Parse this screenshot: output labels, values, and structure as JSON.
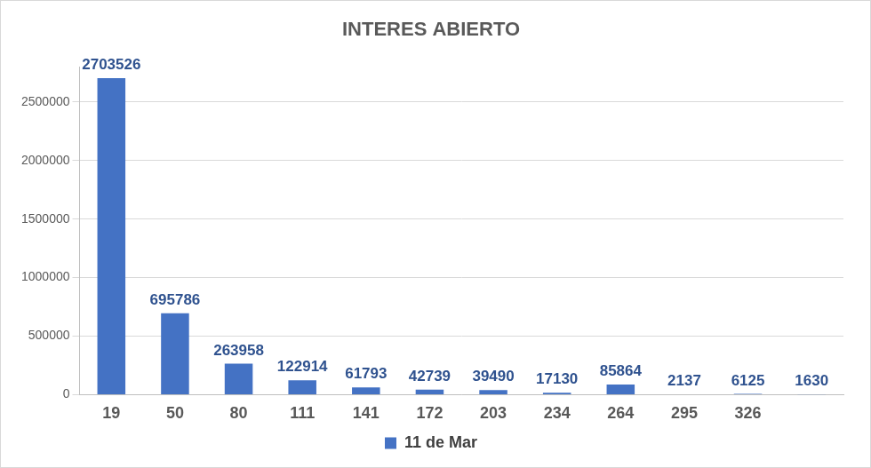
{
  "chart_data": {
    "type": "bar",
    "title": "INTERES ABIERTO",
    "categories": [
      "19",
      "50",
      "80",
      "111",
      "141",
      "172",
      "203",
      "234",
      "264",
      "295",
      "326",
      null
    ],
    "series": [
      {
        "name": "11 de Mar",
        "color": "#4472c4",
        "values": [
          2703526,
          695786,
          263958,
          122914,
          61793,
          42739,
          39490,
          17130,
          85864,
          2137,
          6125,
          1630
        ]
      }
    ],
    "ylim": [
      0,
      2800000
    ],
    "yticks": [
      0,
      500000,
      1000000,
      1500000,
      2000000,
      2500000
    ],
    "grid": true,
    "legend": "bottom",
    "data_labels": true
  }
}
